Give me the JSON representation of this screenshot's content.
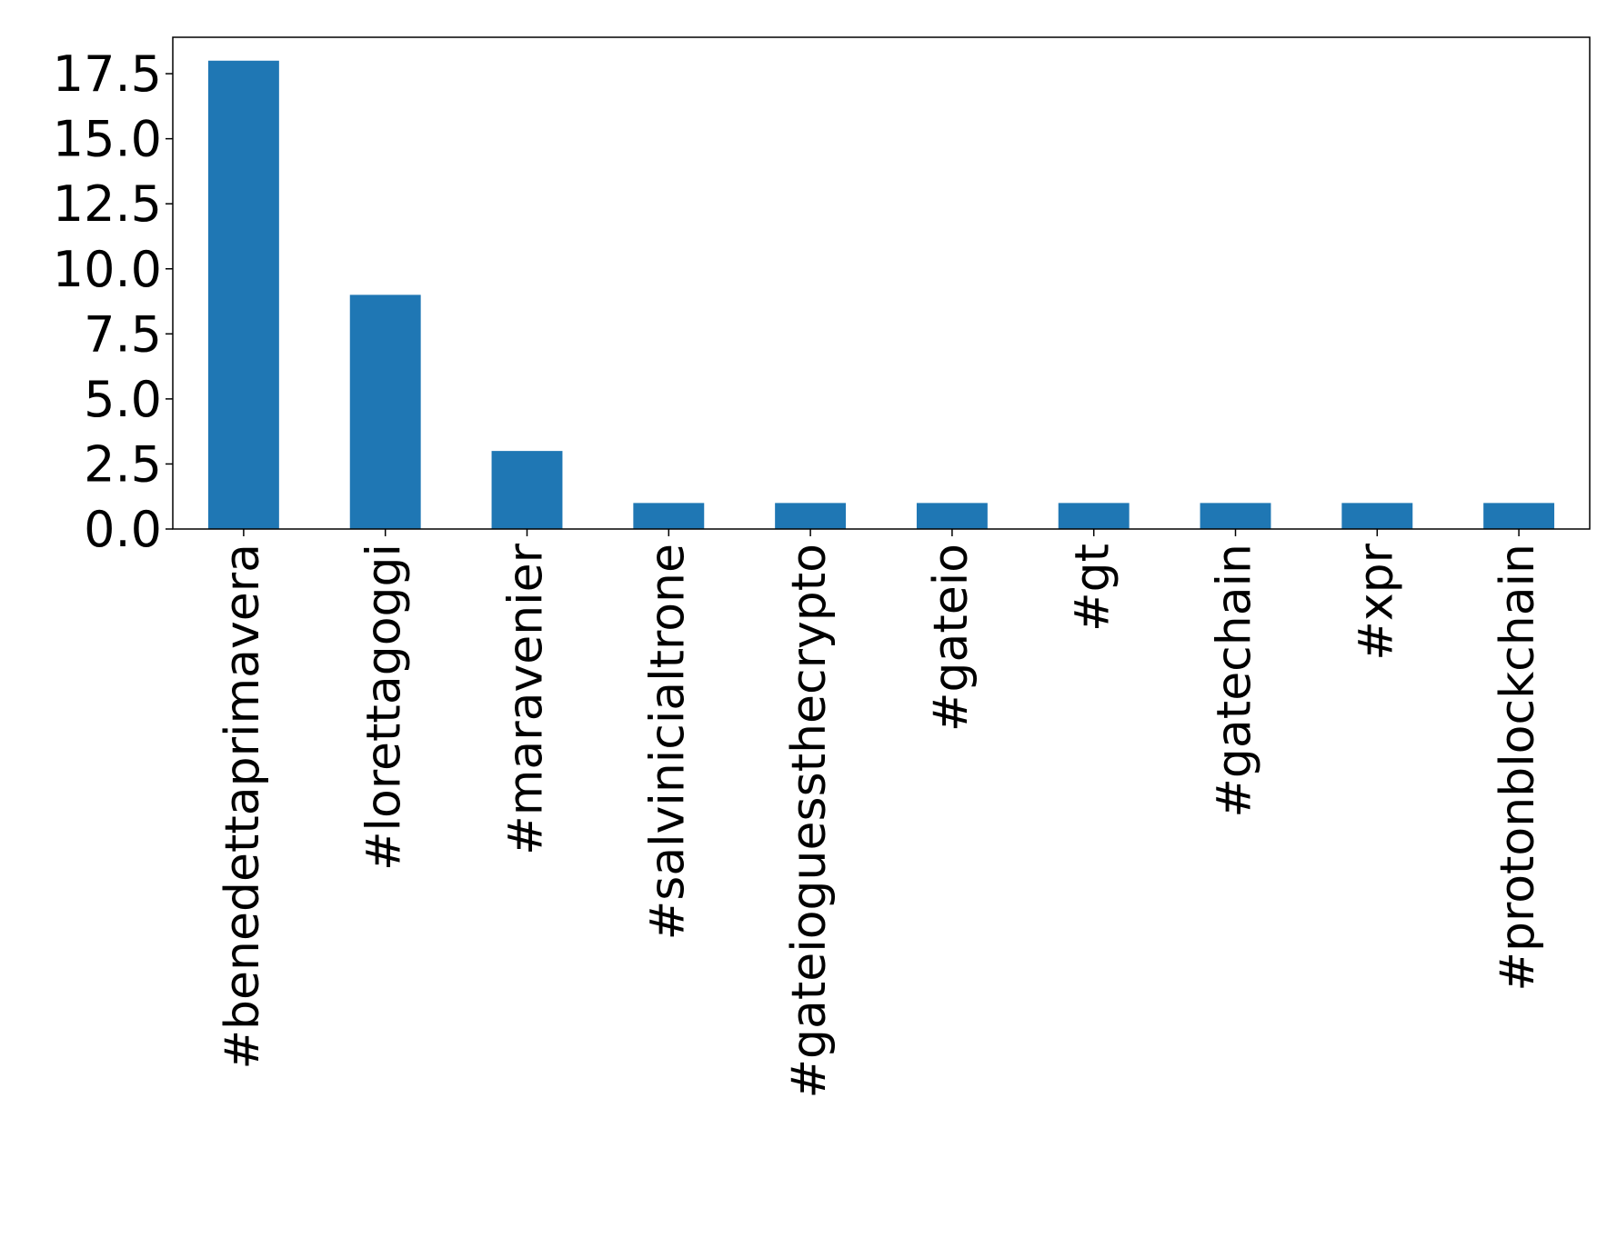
{
  "chart_data": {
    "type": "bar",
    "categories": [
      "#benedettaprimavera",
      "#lorettagoggi",
      "#maravenier",
      "#salvinicialtrone",
      "#gateioguessthecrypto",
      "#gateio",
      "#gt",
      "#gatechain",
      "#xpr",
      "#protonblockchain"
    ],
    "values": [
      18,
      9,
      3,
      1,
      1,
      1,
      1,
      1,
      1,
      1
    ],
    "title": "",
    "xlabel": "",
    "ylabel": "",
    "ylim": [
      0,
      18.9
    ],
    "yticks": [
      0.0,
      2.5,
      5.0,
      7.5,
      10.0,
      12.5,
      15.0,
      17.5
    ],
    "ytick_labels": [
      "0.0",
      "2.5",
      "5.0",
      "7.5",
      "10.0",
      "12.5",
      "15.0",
      "17.5"
    ],
    "grid": false,
    "legend": "none",
    "bar_color": "#1f77b4"
  }
}
